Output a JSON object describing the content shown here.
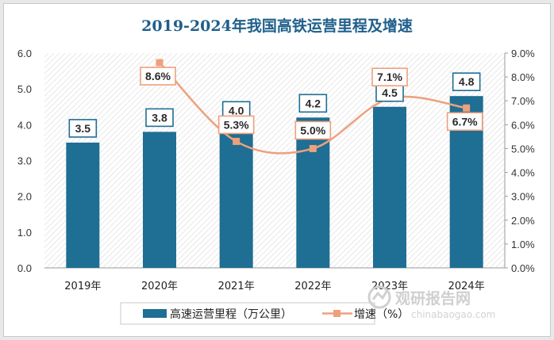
{
  "colors": {
    "bar": "#1f6e93",
    "line": "#eea07d",
    "label_text": "#2a2a2a",
    "label_border_bar": "#1f6e93",
    "label_border_line": "#eea07d",
    "title": "#1f5f8b"
  },
  "chart_data": {
    "type": "bar",
    "title": "2019-2024年我国高铁运营里程及增速",
    "categories": [
      "2019年",
      "2020年",
      "2021年",
      "2022年",
      "2023年",
      "2024年"
    ],
    "series": [
      {
        "name": "高速运营里程（万公里）",
        "type": "bar",
        "axis": "left",
        "values": [
          3.5,
          3.8,
          4.0,
          4.2,
          4.5,
          4.8
        ],
        "labels": [
          "3.5",
          "3.8",
          "4.0",
          "4.2",
          "4.5",
          "4.8"
        ]
      },
      {
        "name": "增速（%）",
        "type": "line",
        "axis": "right",
        "values": [
          null,
          8.6,
          5.3,
          5.0,
          7.1,
          6.7
        ],
        "labels": [
          "",
          "8.6%",
          "5.3%",
          "5.0%",
          "7.1%",
          "6.7%"
        ]
      }
    ],
    "y_left": {
      "min": 0,
      "max": 6,
      "ticks": [
        "0.0",
        "1.0",
        "2.0",
        "3.0",
        "4.0",
        "5.0",
        "6.0"
      ]
    },
    "y_right": {
      "min": 0,
      "max": 9,
      "ticks": [
        "0.0%",
        "1.0%",
        "2.0%",
        "3.0%",
        "4.0%",
        "5.0%",
        "6.0%",
        "7.0%",
        "8.0%",
        "9.0%"
      ]
    },
    "legend_position": "bottom",
    "grid": false,
    "plot_background": "diagonal-hatch"
  },
  "watermark": {
    "text": "观研报告网",
    "url": "chinabaogao.com"
  }
}
